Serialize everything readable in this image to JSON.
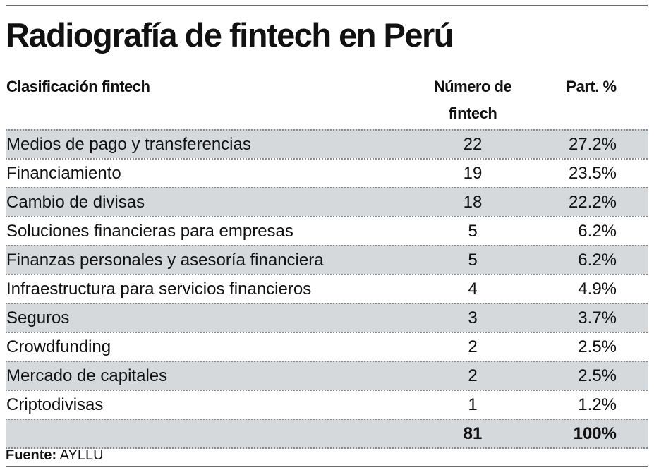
{
  "title": "Radiografía de fintech en Perú",
  "chart_data": {
    "type": "table",
    "title": "Radiografía de fintech en Perú",
    "columns": [
      "Clasificación fintech",
      "Número de fintech",
      "Part. %"
    ],
    "rows": [
      {
        "label": "Medios de pago y transferencias",
        "count": "22",
        "share": "27.2%"
      },
      {
        "label": "Financiamiento",
        "count": "19",
        "share": "23.5%"
      },
      {
        "label": "Cambio de divisas",
        "count": "18",
        "share": "22.2%"
      },
      {
        "label": "Soluciones financieras para empresas",
        "count": "5",
        "share": "6.2%"
      },
      {
        "label": "Finanzas personales y asesoría financiera",
        "count": "5",
        "share": "6.2%"
      },
      {
        "label": "Infraestructura para servicios financieros",
        "count": "4",
        "share": "4.9%"
      },
      {
        "label": "Seguros",
        "count": "3",
        "share": "3.7%"
      },
      {
        "label": "Crowdfunding",
        "count": "2",
        "share": "2.5%"
      },
      {
        "label": "Mercado de capitales",
        "count": "2",
        "share": "2.5%"
      },
      {
        "label": "Criptodivisas",
        "count": "1",
        "share": "1.2%"
      }
    ],
    "total": {
      "count": "81",
      "share": "100%"
    }
  },
  "header": {
    "col1": "Clasificación fintech",
    "col2_line1": "Número de",
    "col2_line2": "fintech",
    "col3": "Part. %"
  },
  "source": {
    "label": "Fuente:",
    "value": "AYLLU"
  },
  "colors": {
    "shade": "#d5d9dc",
    "rule": "#6b6b6b"
  }
}
